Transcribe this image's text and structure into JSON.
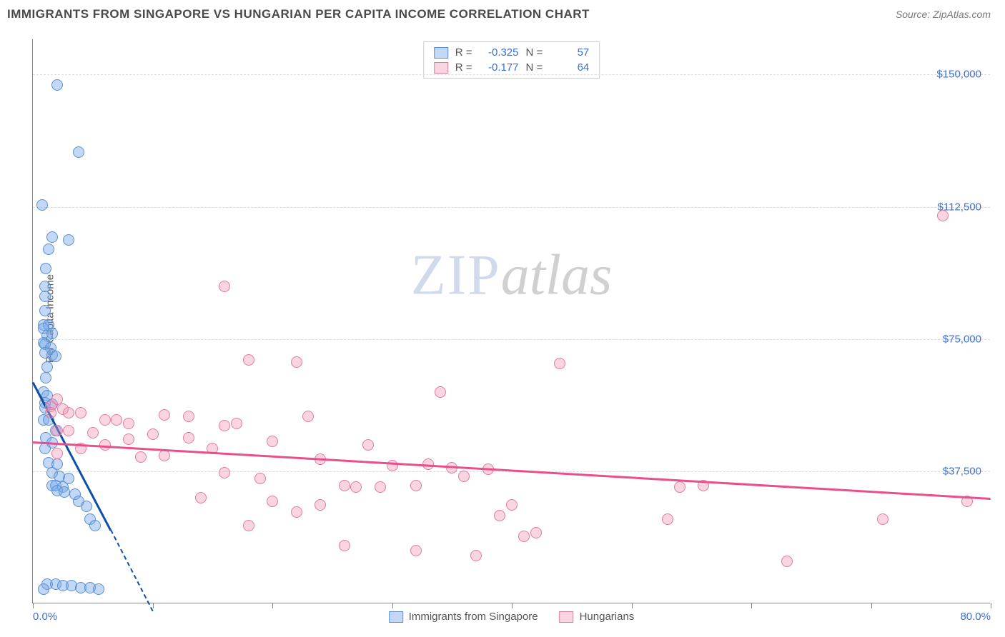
{
  "header": {
    "title": "IMMIGRANTS FROM SINGAPORE VS HUNGARIAN PER CAPITA INCOME CORRELATION CHART",
    "source_prefix": "Source: ",
    "source_name": "ZipAtlas.com"
  },
  "watermark": {
    "part1": "ZIP",
    "part2": "atlas"
  },
  "chart": {
    "type": "scatter",
    "ylabel": "Per Capita Income",
    "xlim": [
      0,
      80
    ],
    "ylim": [
      0,
      160000
    ],
    "x_ticks": [
      0,
      10,
      20,
      30,
      40,
      50,
      60,
      70,
      80
    ],
    "x_tick_labels_shown": {
      "0": "0.0%",
      "80": "80.0%"
    },
    "y_gridlines": [
      37500,
      75000,
      112500,
      150000
    ],
    "y_tick_labels": {
      "37500": "$37,500",
      "75000": "$75,000",
      "112500": "$112,500",
      "150000": "$150,000"
    },
    "background_color": "#ffffff",
    "grid_color": "#dcdcdc",
    "axis_color": "#888888",
    "tick_label_color": "#3b6fd6",
    "series": [
      {
        "id": "singapore",
        "label": "Immigrants from Singapore",
        "r": -0.325,
        "n": 57,
        "marker_fill": "rgba(120,168,230,0.45)",
        "marker_stroke": "#5a8fd6",
        "marker_radius": 8,
        "trend_color": "#0d4fa8",
        "trend_x0": 0,
        "trend_y0": 63000,
        "trend_x1": 6.5,
        "trend_y1": 21000,
        "trend_dash_x1": 10,
        "trend_dash_y1": -2000,
        "points": [
          [
            2.0,
            147000
          ],
          [
            3.8,
            128000
          ],
          [
            0.8,
            113000
          ],
          [
            1.6,
            104000
          ],
          [
            3.0,
            103000
          ],
          [
            1.3,
            100500
          ],
          [
            1.1,
            95000
          ],
          [
            1.0,
            90000
          ],
          [
            1.0,
            87000
          ],
          [
            1.0,
            83000
          ],
          [
            0.9,
            79000
          ],
          [
            1.3,
            79000
          ],
          [
            0.9,
            78000
          ],
          [
            1.2,
            76000
          ],
          [
            1.6,
            76500
          ],
          [
            0.9,
            74000
          ],
          [
            1.0,
            73500
          ],
          [
            1.5,
            72500
          ],
          [
            1.0,
            71000
          ],
          [
            1.6,
            70500
          ],
          [
            1.9,
            70000
          ],
          [
            1.2,
            67000
          ],
          [
            1.1,
            64000
          ],
          [
            0.9,
            60000
          ],
          [
            1.2,
            59000
          ],
          [
            1.0,
            57000
          ],
          [
            1.6,
            56500
          ],
          [
            1.0,
            55500
          ],
          [
            0.9,
            52000
          ],
          [
            1.3,
            52000
          ],
          [
            1.9,
            49000
          ],
          [
            1.1,
            47000
          ],
          [
            1.6,
            45500
          ],
          [
            1.0,
            44000
          ],
          [
            1.3,
            40000
          ],
          [
            2.0,
            39500
          ],
          [
            1.6,
            37000
          ],
          [
            2.2,
            36000
          ],
          [
            3.0,
            35500
          ],
          [
            1.6,
            33500
          ],
          [
            1.9,
            33500
          ],
          [
            2.5,
            33000
          ],
          [
            2.0,
            32000
          ],
          [
            2.6,
            31500
          ],
          [
            3.5,
            31000
          ],
          [
            3.8,
            29000
          ],
          [
            4.5,
            27500
          ],
          [
            4.8,
            24000
          ],
          [
            5.2,
            22000
          ],
          [
            1.2,
            5500
          ],
          [
            1.9,
            5500
          ],
          [
            2.5,
            5000
          ],
          [
            3.2,
            5000
          ],
          [
            4.0,
            4500
          ],
          [
            4.8,
            4500
          ],
          [
            5.5,
            4000
          ],
          [
            0.9,
            4000
          ]
        ]
      },
      {
        "id": "hungarians",
        "label": "Hungarians",
        "r": -0.177,
        "n": 64,
        "marker_fill": "rgba(240,150,180,0.40)",
        "marker_stroke": "#e27aa0",
        "marker_radius": 8,
        "trend_color": "#e94f8a",
        "trend_x0": 0,
        "trend_y0": 46000,
        "trend_x1": 80,
        "trend_y1": 30000,
        "points": [
          [
            76,
            110000
          ],
          [
            16,
            90000
          ],
          [
            18,
            69000
          ],
          [
            22,
            68500
          ],
          [
            44,
            68000
          ],
          [
            34,
            60000
          ],
          [
            2,
            58000
          ],
          [
            1.5,
            56000
          ],
          [
            2.5,
            55000
          ],
          [
            1.5,
            54000
          ],
          [
            3,
            54000
          ],
          [
            4,
            54000
          ],
          [
            11,
            53500
          ],
          [
            13,
            53000
          ],
          [
            6,
            52000
          ],
          [
            7,
            52000
          ],
          [
            23,
            53000
          ],
          [
            8,
            51000
          ],
          [
            17,
            51000
          ],
          [
            16,
            50500
          ],
          [
            2,
            49000
          ],
          [
            3,
            49000
          ],
          [
            5,
            48500
          ],
          [
            10,
            48000
          ],
          [
            13,
            47000
          ],
          [
            8,
            46500
          ],
          [
            20,
            46000
          ],
          [
            6,
            45000
          ],
          [
            28,
            45000
          ],
          [
            4,
            44000
          ],
          [
            15,
            44000
          ],
          [
            2,
            42500
          ],
          [
            11,
            42000
          ],
          [
            9,
            41500
          ],
          [
            24,
            41000
          ],
          [
            33,
            39500
          ],
          [
            30,
            39000
          ],
          [
            35,
            38500
          ],
          [
            38,
            38000
          ],
          [
            16,
            37000
          ],
          [
            19,
            35500
          ],
          [
            36,
            36000
          ],
          [
            26,
            33500
          ],
          [
            27,
            33000
          ],
          [
            29,
            33000
          ],
          [
            32,
            33500
          ],
          [
            14,
            30000
          ],
          [
            54,
            33000
          ],
          [
            20,
            29000
          ],
          [
            24,
            28000
          ],
          [
            56,
            33500
          ],
          [
            40,
            28000
          ],
          [
            22,
            26000
          ],
          [
            39,
            25000
          ],
          [
            53,
            24000
          ],
          [
            26,
            16500
          ],
          [
            32,
            15000
          ],
          [
            37,
            13500
          ],
          [
            41,
            19000
          ],
          [
            42,
            20000
          ],
          [
            63,
            12000
          ],
          [
            71,
            24000
          ],
          [
            78,
            29000
          ],
          [
            18,
            22000
          ]
        ]
      }
    ],
    "legend_top": {
      "r_label": "R =",
      "n_label": "N ="
    }
  }
}
